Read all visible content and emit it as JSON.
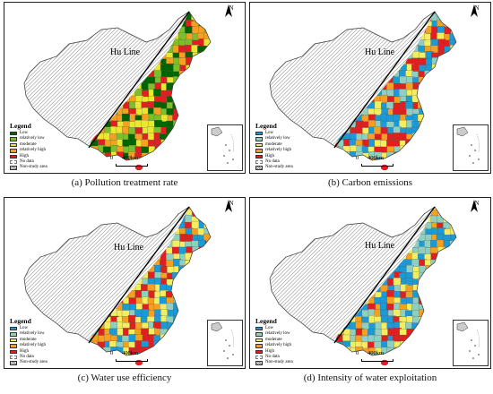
{
  "panels": [
    {
      "id": "a",
      "caption": "(a) Pollution treatment rate",
      "hu_line": "Hu Line",
      "north": "N",
      "legend_title": "Legend",
      "legend": [
        {
          "label": "Low",
          "color": "#006400"
        },
        {
          "label": "relatively low",
          "color": "#7cbf2a"
        },
        {
          "label": "moderate",
          "color": "#e8e830"
        },
        {
          "label": "relatively high",
          "color": "#f5a020"
        },
        {
          "label": "High",
          "color": "#e02020"
        },
        {
          "label": "No data",
          "color": "nodata"
        },
        {
          "label": "Non-study area",
          "color": "hatch"
        }
      ],
      "scale_zero": "0",
      "scale_label": "400km",
      "palette": [
        "#006400",
        "#7cbf2a",
        "#e8e830",
        "#f5a020",
        "#e02020"
      ],
      "weights": [
        0.18,
        0.2,
        0.26,
        0.2,
        0.16
      ]
    },
    {
      "id": "b",
      "caption": "(b) Carbon emissions",
      "hu_line": "Hu Line",
      "north": "N",
      "legend_title": "Legend",
      "legend": [
        {
          "label": "Low",
          "color": "#1a9ad6"
        },
        {
          "label": "relatively low",
          "color": "#8fcfc0"
        },
        {
          "label": "moderate",
          "color": "#f2ee60"
        },
        {
          "label": "relatively high",
          "color": "#f5a020"
        },
        {
          "label": "High",
          "color": "#e02020"
        },
        {
          "label": "No data",
          "color": "nodata"
        },
        {
          "label": "Non-study area",
          "color": "hatch"
        }
      ],
      "scale_zero": "0",
      "scale_label": "400km",
      "palette": [
        "#1a9ad6",
        "#8fcfc0",
        "#f2ee60",
        "#f5a020",
        "#e02020"
      ],
      "weights": [
        0.22,
        0.2,
        0.18,
        0.18,
        0.22
      ]
    },
    {
      "id": "c",
      "caption": "(c) Water use efficiency",
      "hu_line": "Hu Line",
      "north": "N",
      "legend_title": "Legend",
      "legend": [
        {
          "label": "Low",
          "color": "#1a9ad6"
        },
        {
          "label": "relatively low",
          "color": "#8fcfc0"
        },
        {
          "label": "moderate",
          "color": "#f2ee60"
        },
        {
          "label": "relatively high",
          "color": "#f5a020"
        },
        {
          "label": "High",
          "color": "#e02020"
        },
        {
          "label": "No data",
          "color": "nodata"
        },
        {
          "label": "Non-study area",
          "color": "hatch"
        }
      ],
      "scale_zero": "0",
      "scale_label": "400km",
      "palette": [
        "#1a9ad6",
        "#8fcfc0",
        "#f2ee60",
        "#f5a020",
        "#e02020"
      ],
      "weights": [
        0.26,
        0.18,
        0.2,
        0.18,
        0.18
      ]
    },
    {
      "id": "d",
      "caption": "(d) Intensity of water exploitation",
      "hu_line": "Hu Line",
      "north": "N",
      "legend_title": "Legend",
      "legend": [
        {
          "label": "Low",
          "color": "#1a9ad6"
        },
        {
          "label": "relatively low",
          "color": "#8fcfc0"
        },
        {
          "label": "moderate",
          "color": "#f2ee60"
        },
        {
          "label": "relatively high",
          "color": "#f5a020"
        },
        {
          "label": "High",
          "color": "#e02020"
        },
        {
          "label": "No data",
          "color": "nodata"
        },
        {
          "label": "Non-study area",
          "color": "hatch"
        }
      ],
      "scale_zero": "0",
      "scale_label": "400km",
      "palette": [
        "#1a9ad6",
        "#8fcfc0",
        "#f2ee60",
        "#f5a020",
        "#e02020"
      ],
      "weights": [
        0.3,
        0.22,
        0.2,
        0.16,
        0.12
      ]
    }
  ]
}
